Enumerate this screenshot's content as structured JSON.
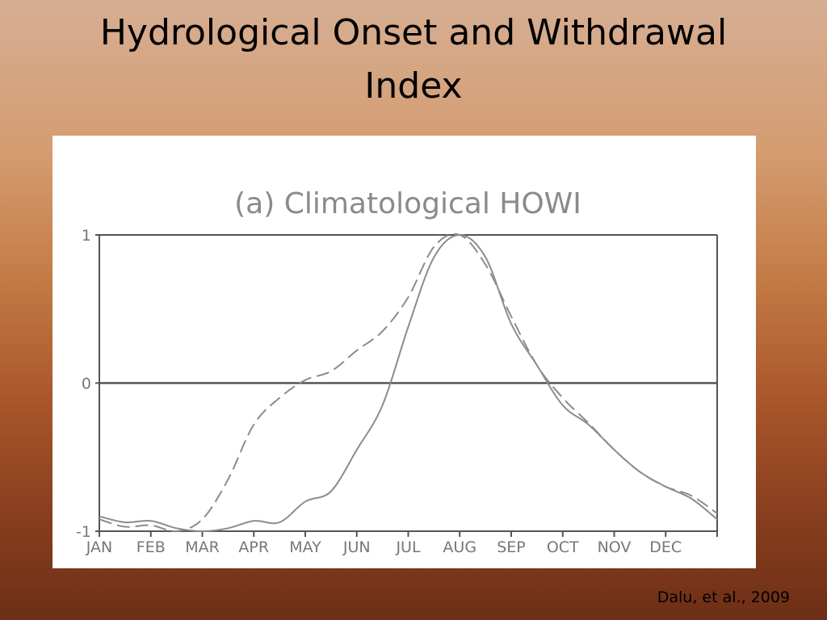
{
  "slide": {
    "title_line1": "Hydrological Onset and Withdrawal",
    "title_line2": "Index",
    "citation": "Dalu, et al., 2009"
  },
  "chart_data": {
    "type": "line",
    "title": "(a)  Climatological  HOWI",
    "xlabel": "",
    "ylabel": "",
    "x_range": [
      0,
      12
    ],
    "ylim": [
      -1,
      1
    ],
    "x_ticks": [
      0,
      1,
      2,
      3,
      4,
      5,
      6,
      7,
      8,
      9,
      10,
      11
    ],
    "x_tick_labels": [
      "JAN",
      "FEB",
      "MAR",
      "APR",
      "MAY",
      "JUN",
      "JUL",
      "AUG",
      "SEP",
      "OCT",
      "NOV",
      "DEC"
    ],
    "y_ticks": [
      -1,
      0,
      1
    ],
    "y_tick_labels": [
      "-1",
      "0",
      "1"
    ],
    "reference_line": 0,
    "grid": false,
    "series": [
      {
        "style": "solid",
        "color": "#8c8c8c",
        "points": [
          [
            0,
            -0.9
          ],
          [
            0.5,
            -0.94
          ],
          [
            1.0,
            -0.93
          ],
          [
            1.5,
            -0.98
          ],
          [
            2.0,
            -1.0
          ],
          [
            2.5,
            -0.98
          ],
          [
            3.0,
            -0.93
          ],
          [
            3.5,
            -0.94
          ],
          [
            4.0,
            -0.8
          ],
          [
            4.5,
            -0.73
          ],
          [
            5.0,
            -0.45
          ],
          [
            5.5,
            -0.15
          ],
          [
            6.0,
            0.38
          ],
          [
            6.5,
            0.85
          ],
          [
            7.0,
            1.0
          ],
          [
            7.5,
            0.85
          ],
          [
            8.0,
            0.4
          ],
          [
            8.5,
            0.12
          ],
          [
            9.0,
            -0.15
          ],
          [
            9.5,
            -0.28
          ],
          [
            10.0,
            -0.45
          ],
          [
            10.5,
            -0.6
          ],
          [
            11.0,
            -0.7
          ],
          [
            11.5,
            -0.78
          ],
          [
            12.0,
            -0.92
          ]
        ]
      },
      {
        "style": "dashed",
        "color": "#8c8c8c",
        "points": [
          [
            0,
            -0.92
          ],
          [
            0.5,
            -0.97
          ],
          [
            1.0,
            -0.96
          ],
          [
            1.5,
            -1.0
          ],
          [
            2.0,
            -0.92
          ],
          [
            2.5,
            -0.65
          ],
          [
            3.0,
            -0.28
          ],
          [
            3.5,
            -0.1
          ],
          [
            4.0,
            0.02
          ],
          [
            4.5,
            0.08
          ],
          [
            5.0,
            0.22
          ],
          [
            5.5,
            0.35
          ],
          [
            6.0,
            0.58
          ],
          [
            6.5,
            0.92
          ],
          [
            7.0,
            1.0
          ],
          [
            7.5,
            0.8
          ],
          [
            8.0,
            0.45
          ],
          [
            8.5,
            0.12
          ],
          [
            9.0,
            -0.1
          ],
          [
            9.5,
            -0.27
          ],
          [
            10.0,
            -0.45
          ],
          [
            10.5,
            -0.6
          ],
          [
            11.0,
            -0.7
          ],
          [
            11.5,
            -0.76
          ],
          [
            12.0,
            -0.88
          ]
        ]
      }
    ]
  }
}
